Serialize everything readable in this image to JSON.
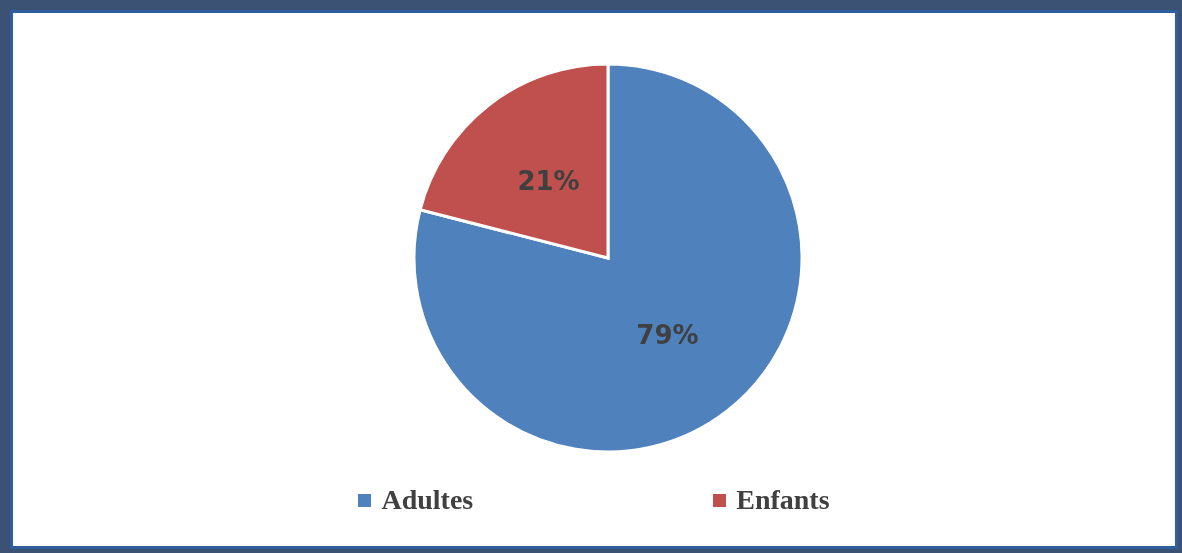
{
  "chart_data": {
    "type": "pie",
    "categories": [
      "Adultes",
      "Enfants"
    ],
    "values": [
      79,
      21
    ],
    "colors": [
      "#4f81bd",
      "#c0504d"
    ],
    "value_labels": [
      "79%",
      "21%"
    ],
    "legend": "bottom"
  }
}
